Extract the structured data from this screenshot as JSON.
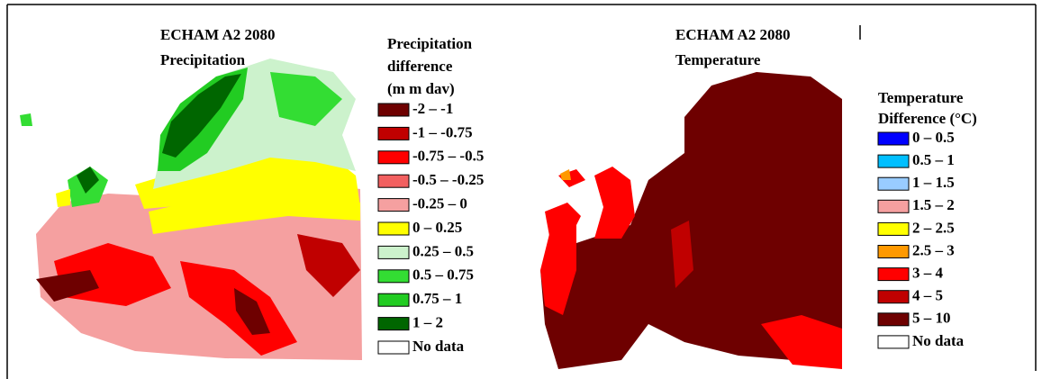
{
  "left_panel": {
    "title": [
      "ECHAM A2 2080",
      "Precipitation"
    ],
    "legend": {
      "title": [
        "Precipitation",
        "difference",
        "(m m dav)"
      ],
      "items": [
        {
          "label": "-2 – -1",
          "color": "#6e0000"
        },
        {
          "label": "-1 – -0.75",
          "color": "#c00000"
        },
        {
          "label": "-0.75 – -0.5",
          "color": "#ff0000"
        },
        {
          "label": "-0.5 – -0.25",
          "color": "#f26060"
        },
        {
          "label": "-0.25 – 0",
          "color": "#f5a0a0"
        },
        {
          "label": "0 – 0.25",
          "color": "#ffff00"
        },
        {
          "label": "0.25 – 0.5",
          "color": "#ccf2cc"
        },
        {
          "label": "0.5 – 0.75",
          "color": "#33dd33"
        },
        {
          "label": "0.75 – 1",
          "color": "#22cc22"
        },
        {
          "label": "1 – 2",
          "color": "#006600"
        },
        {
          "label": "No data",
          "color": "#ffffff"
        }
      ]
    }
  },
  "right_panel": {
    "title": [
      "ECHAM A2 2080",
      "Temperature"
    ],
    "legend": {
      "title": [
        "Temperature",
        "Difference (°C)"
      ],
      "items": [
        {
          "label": "0 – 0.5",
          "color": "#0000ff"
        },
        {
          "label": "0.5 – 1",
          "color": "#00bfff"
        },
        {
          "label": "1 – 1.5",
          "color": "#99ccff"
        },
        {
          "label": "1.5 – 2",
          "color": "#f5a0a0"
        },
        {
          "label": "2 – 2.5",
          "color": "#ffff00"
        },
        {
          "label": "2.5 – 3",
          "color": "#ff9900"
        },
        {
          "label": "3 – 4",
          "color": "#ff0000"
        },
        {
          "label": "4 – 5",
          "color": "#c00000"
        },
        {
          "label": "5 – 10",
          "color": "#6e0000"
        },
        {
          "label": "No data",
          "color": "#ffffff"
        }
      ]
    }
  }
}
